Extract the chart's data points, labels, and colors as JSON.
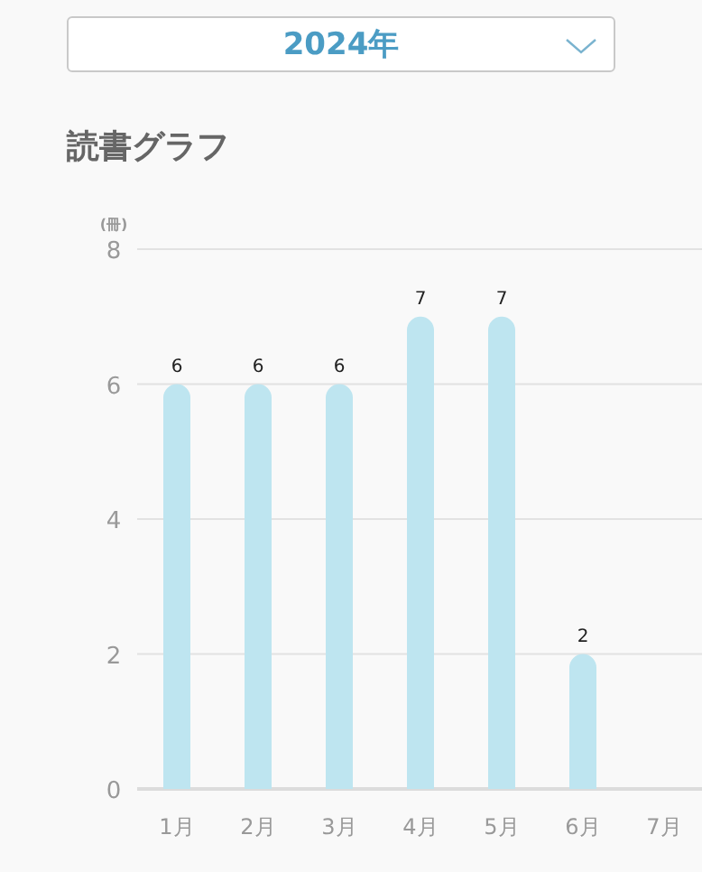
{
  "chart_data": {
    "type": "bar",
    "subtitle": "2024年",
    "title": "読書グラフ",
    "ylabel": "(冊)",
    "categories": [
      "1月",
      "2月",
      "3月",
      "4月",
      "5月",
      "6月",
      "7月"
    ],
    "values": [
      6,
      6,
      6,
      7,
      7,
      2,
      null
    ],
    "color": "#bee5f0",
    "ylim": [
      0,
      8
    ],
    "yticks": [
      0,
      2,
      4,
      6,
      8
    ],
    "grid": "y",
    "data_labels": true
  }
}
